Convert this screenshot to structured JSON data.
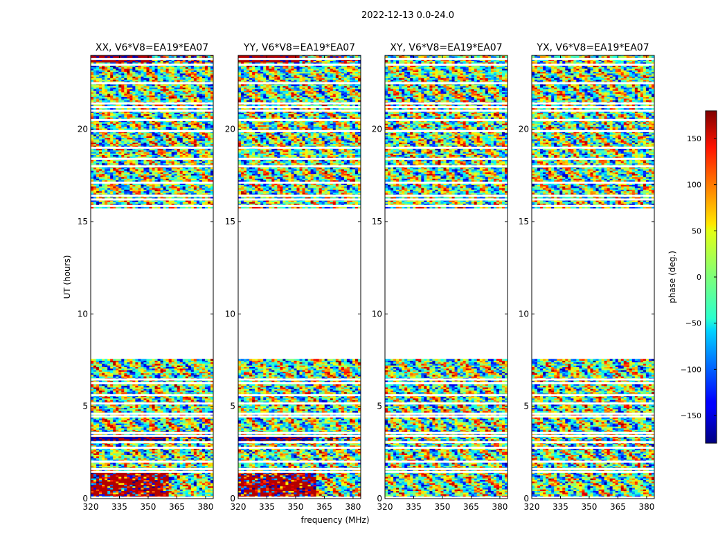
{
  "figure": {
    "suptitle": "2022-12-13 0.0-24.0",
    "xlabel": "frequency (MHz)",
    "ylabel": "UT (hours)",
    "colorbar_label": "phase (deg.)"
  },
  "chart_data": {
    "type": "heatmap",
    "colormap": "jet",
    "panels": [
      {
        "title": "XX, V6*V8=EA19*EA07",
        "pol": "XX"
      },
      {
        "title": "YY, V6*V8=EA19*EA07",
        "pol": "YY"
      },
      {
        "title": "XY, V6*V8=EA19*EA07",
        "pol": "XY"
      },
      {
        "title": "YX, V6*V8=EA19*EA07",
        "pol": "YX"
      }
    ],
    "x_ticks": [
      320,
      335,
      350,
      365,
      380
    ],
    "x_tick_labels": [
      "320",
      "335",
      "350",
      "365",
      "380"
    ],
    "xlim": [
      320,
      384
    ],
    "y_ticks": [
      0,
      5,
      10,
      15,
      20
    ],
    "y_tick_labels": [
      "0",
      "5",
      "10",
      "15",
      "20"
    ],
    "ylim": [
      0,
      24
    ],
    "colorbar": {
      "ticks": [
        150,
        100,
        50,
        0,
        -50,
        -100,
        -150
      ],
      "tick_labels": [
        "150",
        "100",
        "50",
        "0",
        "−50",
        "−100",
        "−150"
      ],
      "range": [
        -180,
        180
      ]
    },
    "data_gap_hours": [
      7.5,
      15.7
    ],
    "description": "Visibility phase vs frequency and time; data present 0-7.5 h and 15.7-24 h"
  }
}
